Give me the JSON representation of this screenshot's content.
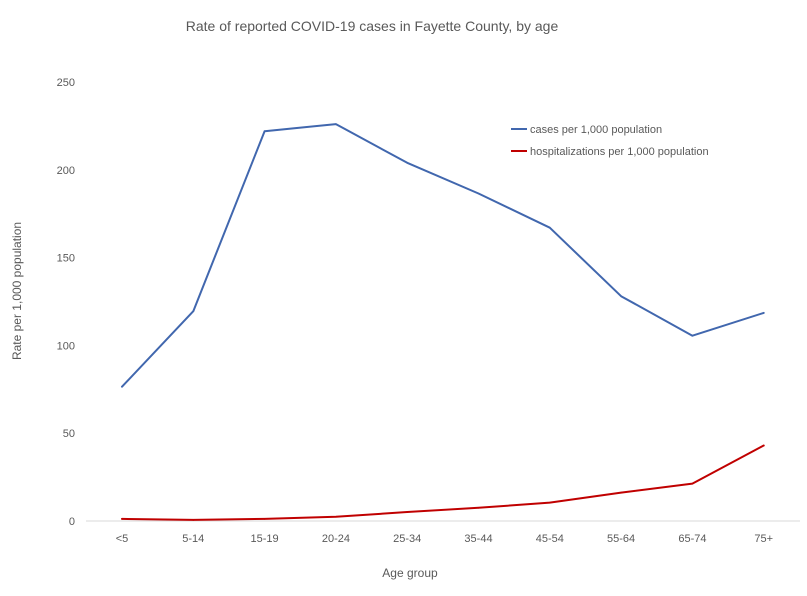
{
  "chart_data": {
    "type": "line",
    "title": "Rate of reported COVID-19 cases in Fayette County, by age",
    "xlabel": "Age group",
    "ylabel": "Rate per 1,000 population",
    "categories": [
      "<5",
      "5-14",
      "15-19",
      "20-24",
      "25-34",
      "35-44",
      "45-54",
      "55-64",
      "65-74",
      "75+"
    ],
    "ylim": [
      0,
      250
    ],
    "yticks": [
      "0",
      "50",
      "100",
      "150",
      "200",
      "250"
    ],
    "grid": false,
    "legend_position": "top-right",
    "series": [
      {
        "name": "cases per 1,000 population",
        "color": "#4167AE",
        "values": [
          76.5,
          119.5,
          222,
          226,
          204,
          186.5,
          167,
          128,
          105.5,
          118.5
        ]
      },
      {
        "name": "hospitalizations per 1,000 population",
        "color": "#C00000",
        "values": [
          1.2,
          0.6,
          1.2,
          2.4,
          5.1,
          7.5,
          10.5,
          16.2,
          21.3,
          43
        ]
      }
    ]
  }
}
